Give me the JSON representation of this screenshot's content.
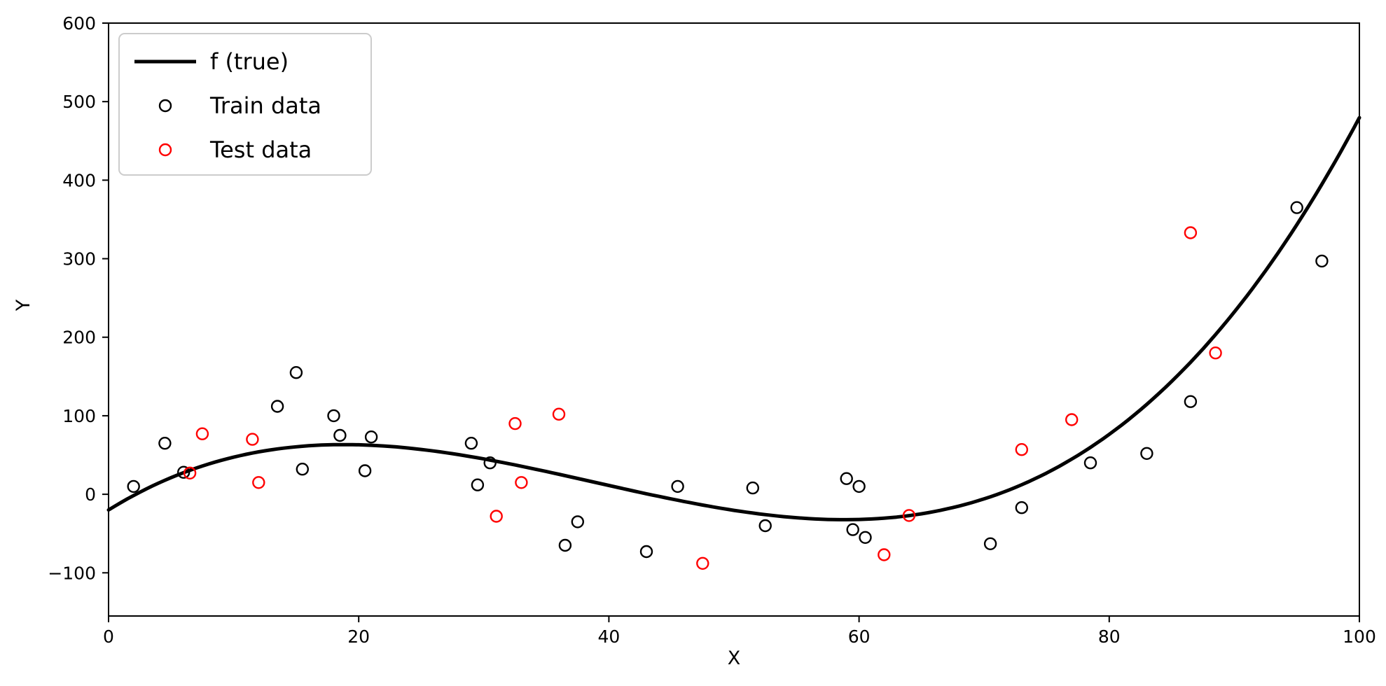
{
  "chart_data": {
    "type": "line+scatter",
    "title": "",
    "xlabel": "X",
    "ylabel": "Y",
    "xlim": [
      0,
      100
    ],
    "ylim": [
      -155,
      600
    ],
    "xticks": [
      0,
      20,
      40,
      60,
      80,
      100
    ],
    "yticks": [
      -100,
      0,
      100,
      200,
      300,
      400,
      500,
      600
    ],
    "grid": false,
    "legend_position": "upper left",
    "series": [
      {
        "name": "f (true)",
        "type": "line",
        "color": "#000000",
        "linewidth": 5,
        "poly_coeffs": {
          "x3": 0.002984,
          "x2": -0.3475,
          "x1": 9.906,
          "x0": -20
        },
        "sample_points": [
          [
            0,
            -20
          ],
          [
            5,
            21.2
          ],
          [
            10,
            47.3
          ],
          [
            15,
            60.5
          ],
          [
            20,
            63.0
          ],
          [
            25,
            57.1
          ],
          [
            30,
            45.0
          ],
          [
            35,
            28.9
          ],
          [
            40,
            11.2
          ],
          [
            45,
            -6.0
          ],
          [
            50,
            -20.4
          ],
          [
            55,
            -29.9
          ],
          [
            60,
            -32.1
          ],
          [
            65,
            -25.1
          ],
          [
            70,
            -5.8
          ],
          [
            75,
            27.8
          ],
          [
            80,
            76.3
          ],
          [
            85,
            143.9
          ],
          [
            90,
            232.1
          ],
          [
            95,
            343.3
          ],
          [
            100,
            479.6
          ]
        ]
      },
      {
        "name": "Train data",
        "type": "scatter",
        "color": "#000000",
        "points": [
          [
            2,
            10
          ],
          [
            4.5,
            65
          ],
          [
            6,
            28
          ],
          [
            13.5,
            112
          ],
          [
            15,
            155
          ],
          [
            15.5,
            32
          ],
          [
            18,
            100
          ],
          [
            18.5,
            75
          ],
          [
            20.5,
            30
          ],
          [
            21,
            73
          ],
          [
            29,
            65
          ],
          [
            29.5,
            12
          ],
          [
            30.5,
            40
          ],
          [
            36.5,
            -65
          ],
          [
            37.5,
            -35
          ],
          [
            43,
            -73
          ],
          [
            45.5,
            10
          ],
          [
            51.5,
            8
          ],
          [
            52.5,
            -40
          ],
          [
            59,
            20
          ],
          [
            59.5,
            -45
          ],
          [
            60,
            10
          ],
          [
            60.5,
            -55
          ],
          [
            70.5,
            -63
          ],
          [
            73,
            -17
          ],
          [
            78.5,
            40
          ],
          [
            83,
            52
          ],
          [
            86.5,
            118
          ],
          [
            95,
            365
          ],
          [
            97,
            297
          ]
        ]
      },
      {
        "name": "Test data",
        "type": "scatter",
        "color": "#ff0000",
        "points": [
          [
            6.5,
            27
          ],
          [
            7.5,
            77
          ],
          [
            11.5,
            70
          ],
          [
            12,
            15
          ],
          [
            31,
            -28
          ],
          [
            32.5,
            90
          ],
          [
            33,
            15
          ],
          [
            36,
            102
          ],
          [
            47.5,
            -88
          ],
          [
            62,
            -77
          ],
          [
            64,
            -27
          ],
          [
            73,
            57
          ],
          [
            77,
            95
          ],
          [
            86.5,
            333
          ],
          [
            88.5,
            180
          ]
        ]
      }
    ]
  }
}
